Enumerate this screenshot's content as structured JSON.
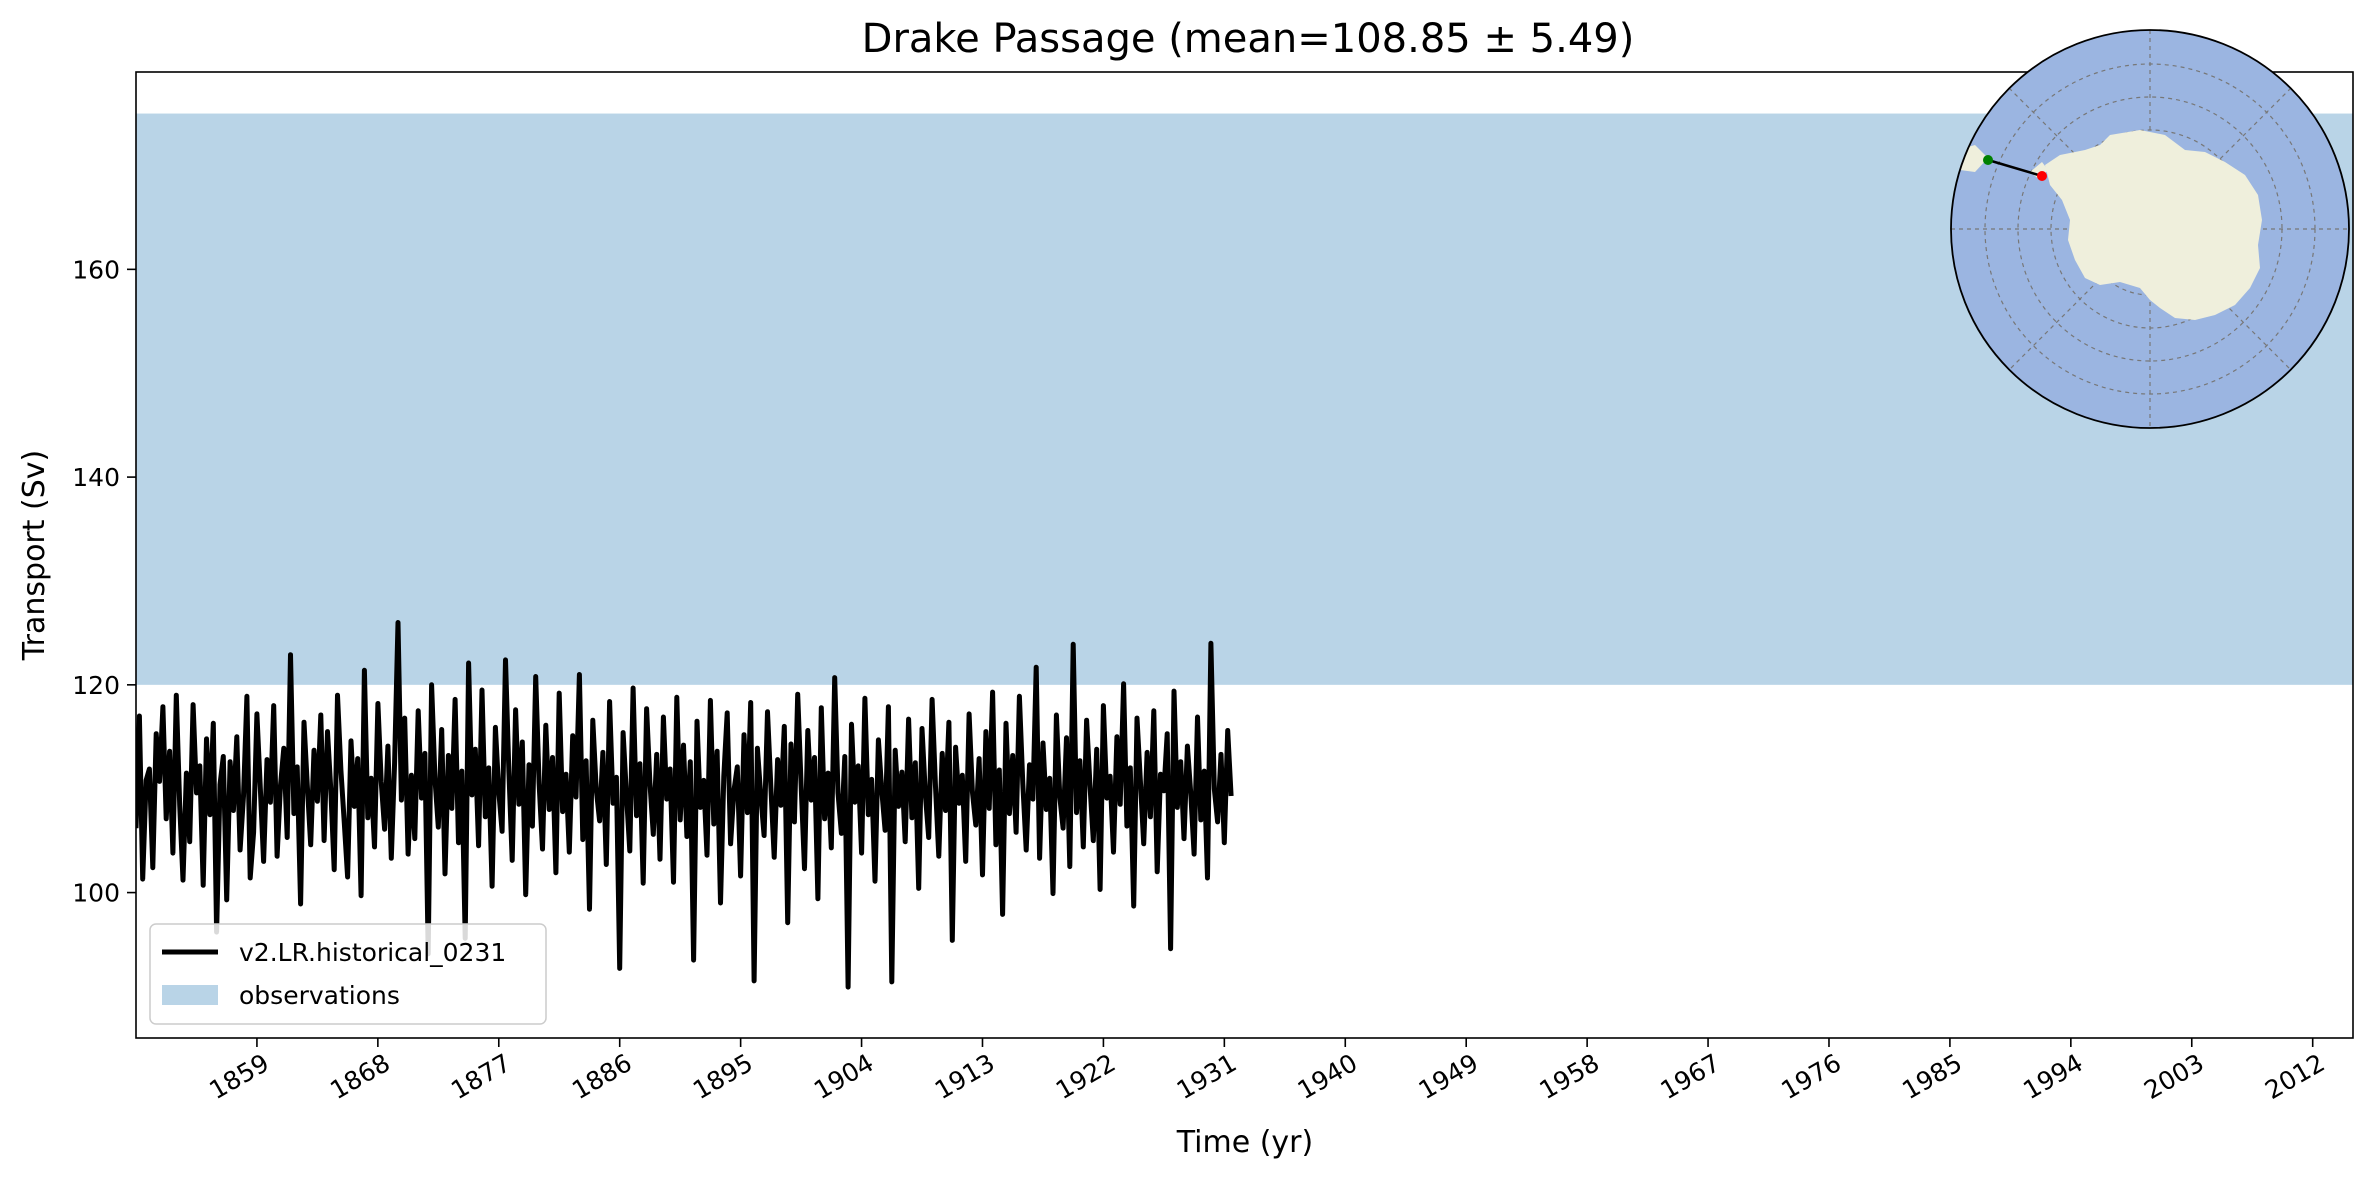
{
  "chart_data": {
    "type": "line",
    "title": "Drake Passage (mean=108.85 ± 5.49)",
    "xlabel": "Time (yr)",
    "ylabel": "Transport (Sv)",
    "xlim": [
      1850,
      2015
    ],
    "ylim": [
      86,
      179
    ],
    "xticks": [
      1859,
      1868,
      1877,
      1886,
      1895,
      1904,
      1913,
      1922,
      1931,
      1940,
      1949,
      1958,
      1967,
      1976,
      1985,
      1994,
      2003,
      2012
    ],
    "yticks": [
      100,
      120,
      140,
      160
    ],
    "grid": false,
    "legend_position": "lower-left",
    "series": [
      {
        "name": "v2.LR.historical_0231",
        "color": "#000000",
        "x_start": 1850,
        "x_step": 0.25,
        "values": [
          106.2,
          117.0,
          101.3,
          110.8,
          111.9,
          102.4,
          115.3,
          110.7,
          117.9,
          107.1,
          113.6,
          103.8,
          119.0,
          108.4,
          101.2,
          111.5,
          104.9,
          118.1,
          109.6,
          112.2,
          100.7,
          114.8,
          107.5,
          116.3,
          96.2,
          110.4,
          113.1,
          99.3,
          112.6,
          107.9,
          115.0,
          104.1,
          109.3,
          118.9,
          101.4,
          105.8,
          117.2,
          110.1,
          103.0,
          112.8,
          108.7,
          118.0,
          103.5,
          110.2,
          113.9,
          105.3,
          122.9,
          107.6,
          112.1,
          98.9,
          116.4,
          110.3,
          104.6,
          113.7,
          108.8,
          117.1,
          105.0,
          115.5,
          109.9,
          102.2,
          119.0,
          111.8,
          106.7,
          101.5,
          114.6,
          108.3,
          112.9,
          99.7,
          121.4,
          107.2,
          111.0,
          104.4,
          118.2,
          110.7,
          106.1,
          114.1,
          103.3,
          112.5,
          126.0,
          108.9,
          116.8,
          103.7,
          111.3,
          105.2,
          117.5,
          109.1,
          113.4,
          94.1,
          120.0,
          110.9,
          106.3,
          115.7,
          101.8,
          113.2,
          108.1,
          118.6,
          104.8,
          111.7,
          95.6,
          122.1,
          109.4,
          113.8,
          104.5,
          119.5,
          107.3,
          112.0,
          100.6,
          115.9,
          109.7,
          105.9,
          122.4,
          111.6,
          103.1,
          117.6,
          108.5,
          114.5,
          99.8,
          112.3,
          106.4,
          120.8,
          110.5,
          104.2,
          116.1,
          108.0,
          113.0,
          101.9,
          119.2,
          107.8,
          111.4,
          103.9,
          115.1,
          109.2,
          121.0,
          105.1,
          112.7,
          98.4,
          116.6,
          110.0,
          106.9,
          113.5,
          102.7,
          118.4,
          108.6,
          111.1,
          92.7,
          115.4,
          109.5,
          104.0,
          119.7,
          107.4,
          112.4,
          100.9,
          117.7,
          110.6,
          105.6,
          113.3,
          103.2,
          116.9,
          109.0,
          111.9,
          101.0,
          118.8,
          107.0,
          114.2,
          105.4,
          112.6,
          93.5,
          116.5,
          108.2,
          110.8,
          103.6,
          118.5,
          106.6,
          113.6,
          99.0,
          111.2,
          117.3,
          104.7,
          109.8,
          112.1,
          101.6,
          115.2,
          107.7,
          118.3,
          91.5,
          113.9,
          109.3,
          105.5,
          117.4,
          110.1,
          103.4,
          112.8,
          108.4,
          116.0,
          97.1,
          114.3,
          106.8,
          119.1,
          110.4,
          102.3,
          115.6,
          108.9,
          113.0,
          99.4,
          117.8,
          107.1,
          111.5,
          104.3,
          120.7,
          109.6,
          105.7,
          113.1,
          90.9,
          116.2,
          108.7,
          112.2,
          103.8,
          118.7,
          107.5,
          110.9,
          101.1,
          114.7,
          109.9,
          106.0,
          117.9,
          91.4,
          113.7,
          108.3,
          111.6,
          104.9,
          116.7,
          107.2,
          112.5,
          100.4,
          115.8,
          109.4,
          105.3,
          118.6,
          110.2,
          103.5,
          113.4,
          107.9,
          116.4,
          95.4,
          114.0,
          108.6,
          111.3,
          103.0,
          117.2,
          109.7,
          106.5,
          112.9,
          101.7,
          115.5,
          108.1,
          119.3,
          104.6,
          111.8,
          97.9,
          116.3,
          107.6,
          113.2,
          105.8,
          118.9,
          110.5,
          104.1,
          112.3,
          109.0,
          121.7,
          103.3,
          114.4,
          108.0,
          111.0,
          99.9,
          117.1,
          109.2,
          106.2,
          114.9,
          102.5,
          123.9,
          107.7,
          112.7,
          104.4,
          116.6,
          110.3,
          105.0,
          113.8,
          100.3,
          118.0,
          109.1,
          111.2,
          103.9,
          115.0,
          108.5,
          120.1,
          106.4,
          112.0,
          98.7,
          116.8,
          110.7,
          104.7,
          113.5,
          107.3,
          117.5,
          102.0,
          111.4,
          109.8,
          115.3,
          94.6,
          119.4,
          108.2,
          112.6,
          105.2,
          114.1,
          109.5,
          103.7,
          116.9,
          107.0,
          111.7,
          101.4,
          124.0,
          110.0,
          106.8,
          113.3,
          104.8,
          115.6,
          109.3
        ]
      },
      {
        "name": "observations",
        "type": "band",
        "color": "#b9d4e7",
        "y_range": [
          120,
          175
        ]
      }
    ]
  },
  "inset_map": {
    "projection": "south-polar-stereographic",
    "ocean_color": "#9bb5e1",
    "land_color": "#efefdc",
    "endpoint_colors": [
      "#008000",
      "#ff0000"
    ]
  }
}
